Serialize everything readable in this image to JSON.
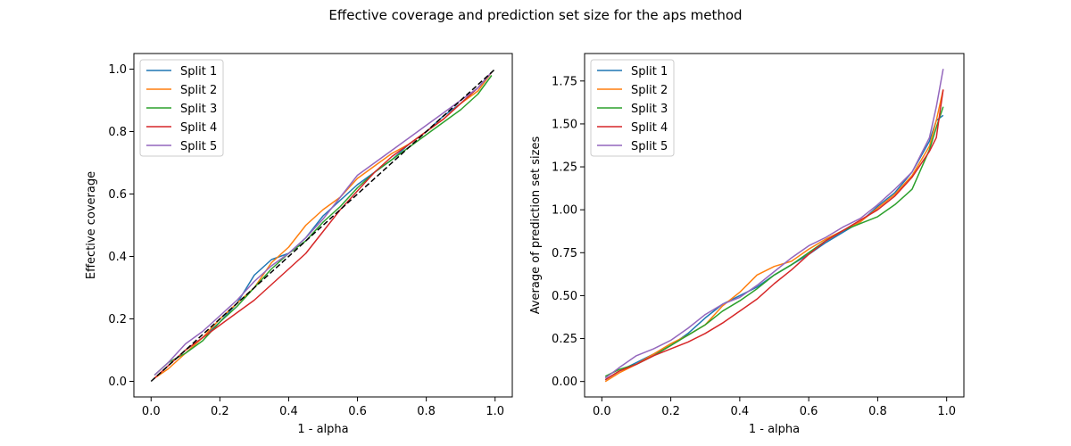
{
  "figure": {
    "title": "Effective coverage and prediction set size for the aps method"
  },
  "colors": {
    "Split 1": "#1f77b4",
    "Split 2": "#ff7f0e",
    "Split 3": "#2ca02c",
    "Split 4": "#d62728",
    "Split 5": "#9467bd",
    "reference": "#000000"
  },
  "chart_data": [
    {
      "type": "line",
      "title": "",
      "xlabel": "1 - alpha",
      "ylabel": "Effective coverage",
      "xlim": [
        -0.05,
        1.05
      ],
      "ylim": [
        -0.05,
        1.05
      ],
      "xticks": [
        0.0,
        0.2,
        0.4,
        0.6,
        0.8,
        1.0
      ],
      "xtick_labels": [
        "0.0",
        "0.2",
        "0.4",
        "0.6",
        "0.8",
        "1.0"
      ],
      "yticks": [
        0.0,
        0.2,
        0.4,
        0.6,
        0.8,
        1.0
      ],
      "ytick_labels": [
        "0.0",
        "0.2",
        "0.4",
        "0.6",
        "0.8",
        "1.0"
      ],
      "legend": "top-left",
      "grid": false,
      "reference_line": {
        "style": "dashed",
        "color": "#000000",
        "x": [
          0.0,
          1.0
        ],
        "y": [
          0.0,
          1.0
        ]
      },
      "x": [
        0.01,
        0.05,
        0.1,
        0.15,
        0.2,
        0.25,
        0.3,
        0.35,
        0.4,
        0.45,
        0.5,
        0.55,
        0.6,
        0.65,
        0.7,
        0.75,
        0.8,
        0.85,
        0.9,
        0.95,
        0.99
      ],
      "series": [
        {
          "name": "Split 1",
          "values": [
            0.01,
            0.05,
            0.1,
            0.14,
            0.19,
            0.25,
            0.34,
            0.39,
            0.41,
            0.46,
            0.53,
            0.58,
            0.63,
            0.67,
            0.71,
            0.76,
            0.8,
            0.85,
            0.89,
            0.94,
            0.99
          ]
        },
        {
          "name": "Split 2",
          "values": [
            0.01,
            0.04,
            0.09,
            0.14,
            0.2,
            0.25,
            0.3,
            0.38,
            0.43,
            0.5,
            0.55,
            0.59,
            0.65,
            0.69,
            0.73,
            0.76,
            0.8,
            0.84,
            0.89,
            0.93,
            0.99
          ]
        },
        {
          "name": "Split 3",
          "values": [
            0.02,
            0.06,
            0.09,
            0.13,
            0.19,
            0.24,
            0.3,
            0.36,
            0.41,
            0.45,
            0.51,
            0.56,
            0.62,
            0.67,
            0.71,
            0.75,
            0.79,
            0.83,
            0.87,
            0.92,
            0.98
          ]
        },
        {
          "name": "Split 4",
          "values": [
            0.01,
            0.05,
            0.1,
            0.14,
            0.18,
            0.22,
            0.26,
            0.31,
            0.36,
            0.41,
            0.48,
            0.55,
            0.61,
            0.67,
            0.72,
            0.76,
            0.8,
            0.84,
            0.89,
            0.94,
            0.99
          ]
        },
        {
          "name": "Split 5",
          "values": [
            0.02,
            0.06,
            0.12,
            0.16,
            0.21,
            0.26,
            0.32,
            0.37,
            0.41,
            0.46,
            0.52,
            0.59,
            0.66,
            0.7,
            0.74,
            0.78,
            0.82,
            0.86,
            0.9,
            0.94,
            0.99
          ]
        }
      ]
    },
    {
      "type": "line",
      "title": "",
      "xlabel": "1 - alpha",
      "ylabel": "Average of prediction set sizes",
      "xlim": [
        -0.05,
        1.05
      ],
      "ylim": [
        -0.09,
        1.91
      ],
      "xticks": [
        0.0,
        0.2,
        0.4,
        0.6,
        0.8,
        1.0
      ],
      "xtick_labels": [
        "0.0",
        "0.2",
        "0.4",
        "0.6",
        "0.8",
        "1.0"
      ],
      "yticks": [
        0.0,
        0.25,
        0.5,
        0.75,
        1.0,
        1.25,
        1.5,
        1.75
      ],
      "ytick_labels": [
        "0.00",
        "0.25",
        "0.50",
        "0.75",
        "1.00",
        "1.25",
        "1.50",
        "1.75"
      ],
      "legend": "top-left",
      "grid": false,
      "x": [
        0.01,
        0.05,
        0.1,
        0.15,
        0.2,
        0.25,
        0.3,
        0.35,
        0.4,
        0.45,
        0.5,
        0.55,
        0.6,
        0.65,
        0.7,
        0.75,
        0.8,
        0.85,
        0.9,
        0.95,
        0.97,
        0.99
      ],
      "series": [
        {
          "name": "Split 1",
          "values": [
            0.01,
            0.06,
            0.11,
            0.16,
            0.21,
            0.28,
            0.37,
            0.45,
            0.5,
            0.55,
            0.62,
            0.68,
            0.74,
            0.81,
            0.87,
            0.93,
            1.02,
            1.1,
            1.22,
            1.4,
            1.52,
            1.55
          ]
        },
        {
          "name": "Split 2",
          "values": [
            0.0,
            0.05,
            0.1,
            0.16,
            0.22,
            0.27,
            0.33,
            0.44,
            0.52,
            0.62,
            0.67,
            0.7,
            0.77,
            0.83,
            0.88,
            0.93,
            1.01,
            1.09,
            1.2,
            1.37,
            1.52,
            1.7
          ]
        },
        {
          "name": "Split 3",
          "values": [
            0.03,
            0.07,
            0.1,
            0.15,
            0.21,
            0.27,
            0.33,
            0.41,
            0.47,
            0.54,
            0.62,
            0.68,
            0.75,
            0.82,
            0.88,
            0.92,
            0.96,
            1.03,
            1.12,
            1.35,
            1.48,
            1.6
          ]
        },
        {
          "name": "Split 4",
          "values": [
            0.01,
            0.06,
            0.1,
            0.15,
            0.19,
            0.23,
            0.28,
            0.34,
            0.41,
            0.48,
            0.57,
            0.65,
            0.74,
            0.82,
            0.88,
            0.94,
            1.0,
            1.08,
            1.19,
            1.34,
            1.42,
            1.7
          ]
        },
        {
          "name": "Split 5",
          "values": [
            0.02,
            0.08,
            0.15,
            0.19,
            0.24,
            0.31,
            0.39,
            0.45,
            0.49,
            0.56,
            0.64,
            0.72,
            0.79,
            0.84,
            0.9,
            0.95,
            1.03,
            1.12,
            1.22,
            1.42,
            1.6,
            1.82
          ]
        }
      ]
    }
  ]
}
